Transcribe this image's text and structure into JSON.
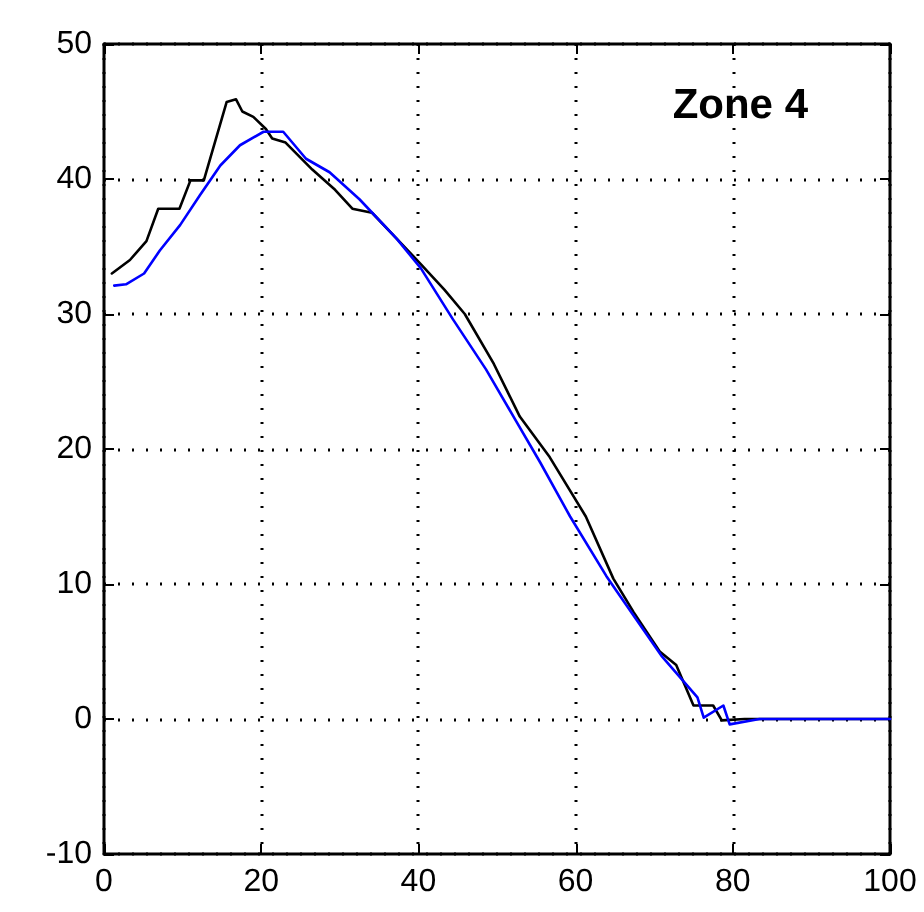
{
  "chart_data": {
    "type": "line",
    "annotations": [
      "Zone 4"
    ],
    "xlim": [
      0,
      100
    ],
    "ylim": [
      -10,
      50
    ],
    "xticks": [
      0,
      20,
      40,
      60,
      80,
      100
    ],
    "yticks": [
      -10,
      0,
      10,
      20,
      30,
      40,
      50
    ],
    "grid": true,
    "marker": "none",
    "line_style": "solid",
    "series": [
      {
        "color": "#000000",
        "x": [
          1,
          3.3,
          5.4,
          6.9,
          9.6,
          11,
          12.7,
          15.6,
          16.8,
          17.6,
          19,
          20.6,
          21.4,
          23.1,
          26.5,
          29.4,
          31.6,
          34.1,
          37.2,
          40.3,
          43.3,
          45.9,
          49.6,
          52.9,
          56.7,
          61.3,
          64.8,
          67.4,
          70.7,
          72.8,
          75,
          77.5,
          78.6,
          81.5,
          100
        ],
        "values": [
          33,
          34,
          35.4,
          37.8,
          37.8,
          39.9,
          39.9,
          45.7,
          45.9,
          45,
          44.6,
          43.7,
          43,
          42.7,
          40.7,
          39.2,
          37.8,
          37.5,
          35.6,
          33.7,
          31.8,
          30,
          26.3,
          22.4,
          19.4,
          15,
          10.4,
          7.9,
          5,
          4,
          1,
          1,
          -0.1,
          0,
          0
        ]
      },
      {
        "color": "#0000ff",
        "x": [
          1.3,
          2.8,
          5.1,
          7.1,
          9.7,
          12.2,
          14.8,
          17.3,
          20.3,
          22.8,
          25.7,
          28.7,
          32.5,
          37.2,
          40.3,
          44.4,
          48.6,
          52.1,
          55.5,
          59.3,
          63.9,
          65.3,
          70.9,
          75.5,
          76.3,
          78.8,
          79.6,
          83.4,
          100
        ],
        "values": [
          32.1,
          32.2,
          33,
          34.7,
          36.6,
          38.8,
          41,
          42.5,
          43.5,
          43.5,
          41.5,
          40.5,
          38.5,
          35.6,
          33.4,
          29.6,
          25.9,
          22.4,
          19,
          15,
          10.6,
          9.4,
          4.7,
          1.6,
          0.1,
          1,
          -0.4,
          0,
          0
        ]
      }
    ]
  }
}
